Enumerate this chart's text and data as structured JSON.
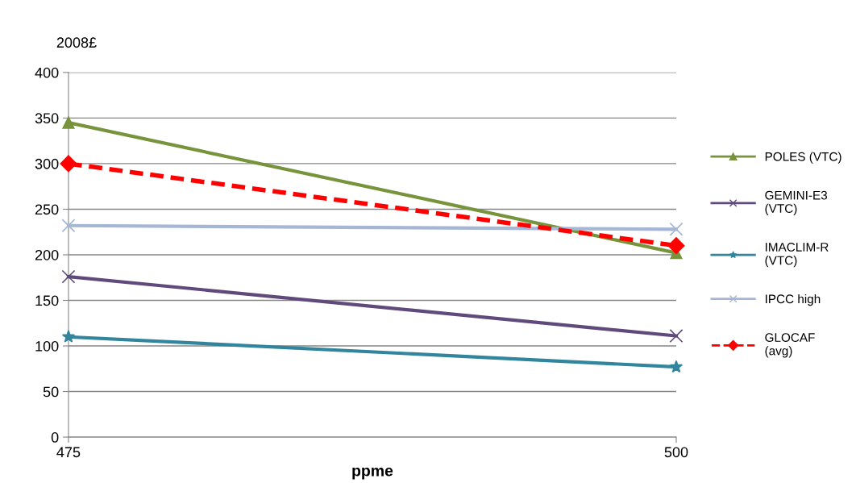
{
  "chart_data": {
    "type": "line",
    "ylabel": "2008£",
    "xlabel": "ppme",
    "x": [
      475,
      500
    ],
    "xlim": [
      475,
      500
    ],
    "xticks": [
      475,
      500
    ],
    "ylim": [
      0,
      400
    ],
    "yticks": [
      0,
      50,
      100,
      150,
      200,
      250,
      300,
      350,
      400
    ],
    "grid": "y",
    "legend": "right",
    "series": [
      {
        "name": "POLES (VTC)",
        "color": "#77933c",
        "values": [
          345,
          202
        ],
        "marker": "triangle",
        "line_style": "solid"
      },
      {
        "name": "GEMINI-E3\n(VTC)",
        "color": "#604a7b",
        "values": [
          176,
          111
        ],
        "marker": "cross",
        "line_style": "solid"
      },
      {
        "name": "IMACLIM-R\n(VTC)",
        "color": "#31859c",
        "values": [
          110,
          77
        ],
        "marker": "star",
        "line_style": "solid"
      },
      {
        "name": "IPCC high",
        "color": "#a6b7d6",
        "values": [
          232,
          228
        ],
        "marker": "cross",
        "line_style": "solid"
      },
      {
        "name": "GLOCAF\n(avg)",
        "color": "#ff0000",
        "values": [
          300,
          210
        ],
        "marker": "diamond",
        "line_style": "dashed"
      }
    ]
  }
}
